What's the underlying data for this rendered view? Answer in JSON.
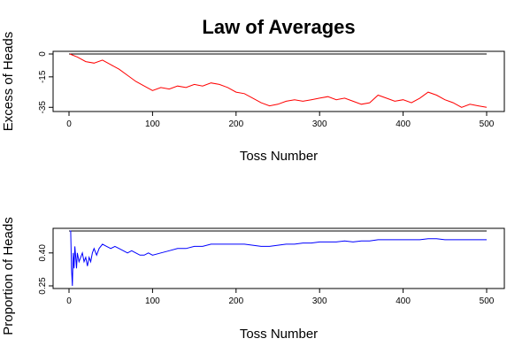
{
  "figure_title": "Law of Averages",
  "chart_data": [
    {
      "type": "line",
      "ylabel": "Excess of Heads",
      "xlabel": "Toss Number",
      "xlim": [
        0,
        500
      ],
      "ylim": [
        -36,
        0
      ],
      "x_ticks": [
        0,
        100,
        200,
        300,
        400,
        500
      ],
      "y_ticks": [
        0,
        -15,
        -35
      ],
      "series_color": "#ff0000",
      "reference_line": {
        "y": 0,
        "color": "#000000"
      },
      "series": [
        {
          "x": [
            1,
            10,
            20,
            30,
            40,
            50,
            60,
            70,
            80,
            90,
            100,
            110,
            120,
            130,
            140,
            150,
            160,
            170,
            180,
            190,
            200,
            210,
            220,
            230,
            240,
            250,
            260,
            270,
            280,
            290,
            300,
            310,
            320,
            330,
            340,
            350,
            360,
            370,
            380,
            390,
            400,
            410,
            420,
            430,
            440,
            450,
            460,
            470,
            480,
            490,
            500
          ],
          "y": [
            0,
            -2,
            -5,
            -6,
            -4,
            -7,
            -10,
            -14,
            -18,
            -21,
            -24,
            -22,
            -23,
            -21,
            -22,
            -20,
            -21,
            -19,
            -20,
            -22,
            -25,
            -26,
            -29,
            -32,
            -34,
            -33,
            -31,
            -30,
            -31,
            -30,
            -29,
            -28,
            -30,
            -29,
            -31,
            -33,
            -32,
            -27,
            -29,
            -31,
            -30,
            -32,
            -29,
            -25,
            -27,
            -30,
            -32,
            -35,
            -33,
            -34,
            -35
          ]
        }
      ]
    },
    {
      "type": "line",
      "ylabel": "Proportion of Heads",
      "xlabel": "Toss Number",
      "xlim": [
        0,
        500
      ],
      "ylim": [
        0.25,
        0.5
      ],
      "x_ticks": [
        0,
        100,
        200,
        300,
        400,
        500
      ],
      "y_ticks": [
        0.25,
        0.4
      ],
      "y_tick_labels": [
        "0.25",
        "0.40"
      ],
      "series_color": "#0000ff",
      "reference_line": {
        "y": 0.5,
        "color": "#000000"
      },
      "series": [
        {
          "x": [
            1,
            2,
            3,
            4,
            5,
            6,
            7,
            8,
            9,
            10,
            12,
            14,
            16,
            18,
            20,
            22,
            24,
            26,
            28,
            30,
            33,
            36,
            40,
            45,
            50,
            55,
            60,
            65,
            70,
            75,
            80,
            85,
            90,
            95,
            100,
            110,
            120,
            130,
            140,
            150,
            160,
            170,
            180,
            190,
            200,
            210,
            220,
            230,
            240,
            250,
            260,
            270,
            280,
            290,
            300,
            310,
            320,
            330,
            340,
            350,
            360,
            370,
            380,
            390,
            400,
            410,
            420,
            430,
            440,
            450,
            460,
            470,
            480,
            490,
            500
          ],
          "y": [
            0.5,
            0.5,
            0.33,
            0.25,
            0.4,
            0.33,
            0.43,
            0.38,
            0.33,
            0.4,
            0.36,
            0.38,
            0.4,
            0.36,
            0.38,
            0.34,
            0.38,
            0.36,
            0.4,
            0.42,
            0.39,
            0.42,
            0.44,
            0.43,
            0.42,
            0.43,
            0.42,
            0.41,
            0.4,
            0.41,
            0.4,
            0.39,
            0.39,
            0.4,
            0.39,
            0.4,
            0.41,
            0.42,
            0.42,
            0.43,
            0.43,
            0.44,
            0.44,
            0.44,
            0.44,
            0.44,
            0.435,
            0.43,
            0.43,
            0.435,
            0.44,
            0.44,
            0.445,
            0.445,
            0.45,
            0.45,
            0.45,
            0.455,
            0.45,
            0.455,
            0.455,
            0.46,
            0.46,
            0.46,
            0.46,
            0.46,
            0.46,
            0.465,
            0.465,
            0.46,
            0.46,
            0.46,
            0.46,
            0.46,
            0.46
          ]
        }
      ]
    }
  ]
}
